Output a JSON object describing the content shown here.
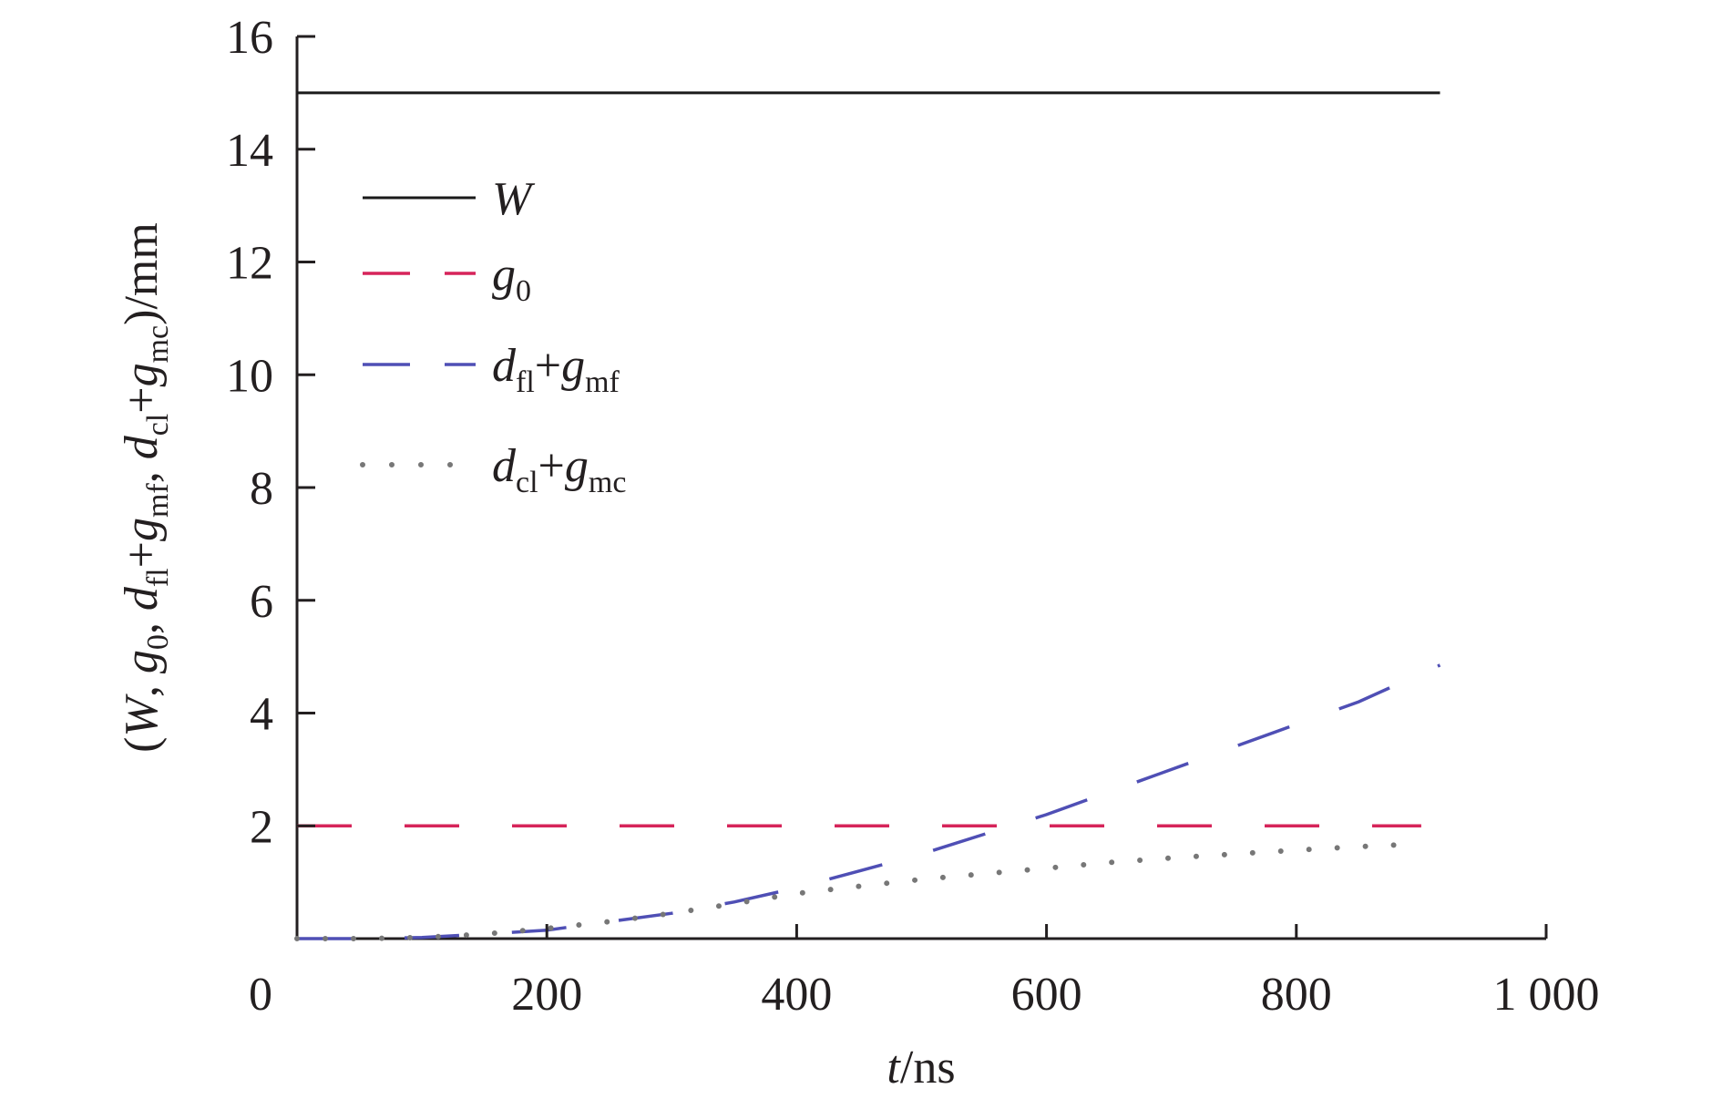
{
  "chart_data": {
    "type": "line",
    "xlabel": {
      "var": "t",
      "unit": "/ns"
    },
    "ylabel": {
      "open": "(",
      "parts": [
        {
          "base": "W",
          "italic": true
        },
        {
          "base": ", ",
          "italic": false
        },
        {
          "base": "g",
          "italic": true,
          "sub": "0"
        },
        {
          "base": ", ",
          "italic": false
        },
        {
          "base": "d",
          "italic": true,
          "sub": "fl"
        },
        {
          "base": "+",
          "italic": false
        },
        {
          "base": "g",
          "italic": true,
          "sub": "mf"
        },
        {
          "base": ", ",
          "italic": false
        },
        {
          "base": "d",
          "italic": true,
          "sub": "cl"
        },
        {
          "base": "+",
          "italic": false
        },
        {
          "base": "g",
          "italic": true,
          "sub": "mc"
        }
      ],
      "close": ")/mm"
    },
    "xlim": [
      0,
      1000
    ],
    "ylim": [
      0,
      16
    ],
    "x_ticks": [
      0,
      200,
      400,
      600,
      800,
      1000
    ],
    "x_tick_labels": [
      "0",
      "200",
      "400",
      "600",
      "800",
      "1 000"
    ],
    "y_ticks": [
      2,
      4,
      6,
      8,
      10,
      12,
      14,
      16
    ],
    "y_tick_labels": [
      "2",
      "4",
      "6",
      "8",
      "10",
      "12",
      "14",
      "16"
    ],
    "grid": false,
    "legend_position": "top-left",
    "series": [
      {
        "name": "W",
        "legend": [
          {
            "base": "W",
            "italic": true
          }
        ],
        "style": "solid",
        "color": "#1a1a1a",
        "x": [
          0,
          915
        ],
        "y": [
          15,
          15
        ]
      },
      {
        "name": "g0",
        "legend": [
          {
            "base": "g",
            "italic": true,
            "sub": "0"
          }
        ],
        "style": "dash",
        "color": "#d6245a",
        "x": [
          0,
          900
        ],
        "y": [
          2,
          2
        ]
      },
      {
        "name": "dfl+gmf",
        "legend": [
          {
            "base": "d",
            "italic": true,
            "sub": "fl"
          },
          {
            "base": "+",
            "italic": false
          },
          {
            "base": "g",
            "italic": true,
            "sub": "mf"
          }
        ],
        "style": "dash",
        "color": "#4f4fb5",
        "x": [
          0,
          50,
          100,
          150,
          200,
          250,
          300,
          350,
          400,
          450,
          500,
          550,
          600,
          650,
          700,
          750,
          800,
          850,
          915
        ],
        "y": [
          0,
          0,
          0.02,
          0.08,
          0.15,
          0.3,
          0.45,
          0.65,
          0.9,
          1.2,
          1.5,
          1.85,
          2.2,
          2.6,
          3.0,
          3.4,
          3.8,
          4.2,
          4.85
        ]
      },
      {
        "name": "dcl+gmc",
        "legend": [
          {
            "base": "d",
            "italic": true,
            "sub": "cl"
          },
          {
            "base": "+",
            "italic": false
          },
          {
            "base": "g",
            "italic": true,
            "sub": "mc"
          }
        ],
        "style": "dot",
        "color": "#777777",
        "x": [
          0,
          50,
          100,
          150,
          200,
          250,
          300,
          350,
          400,
          450,
          500,
          550,
          600,
          650,
          700,
          750,
          800,
          850,
          900
        ],
        "y": [
          0,
          0,
          0.02,
          0.08,
          0.18,
          0.3,
          0.45,
          0.62,
          0.8,
          0.93,
          1.05,
          1.15,
          1.25,
          1.35,
          1.43,
          1.5,
          1.57,
          1.63,
          1.68
        ]
      }
    ]
  }
}
